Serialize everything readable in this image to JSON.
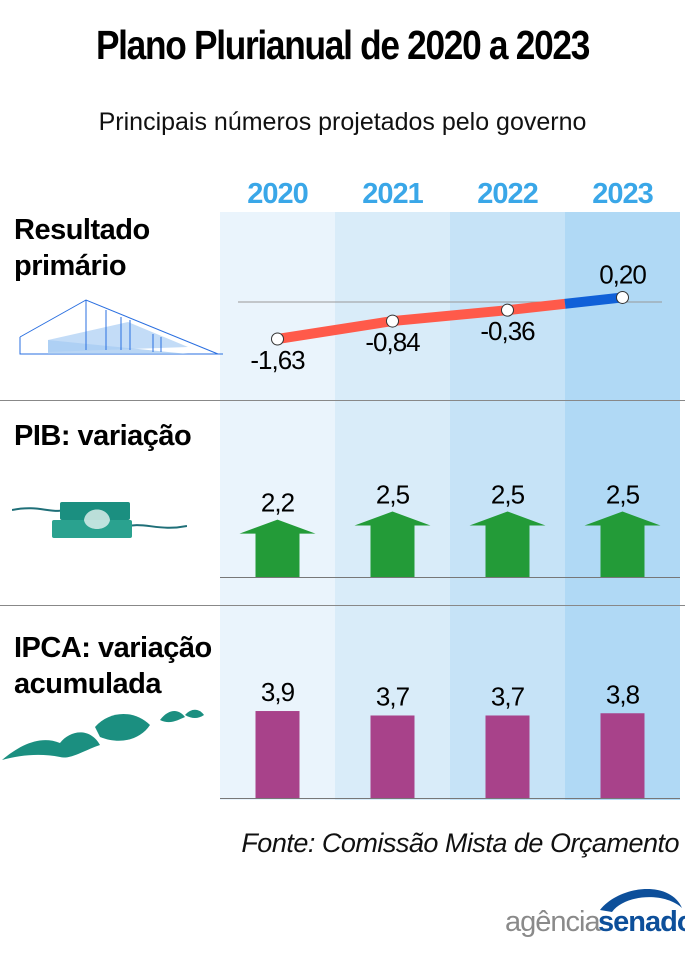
{
  "title": "Plano Plurianual de 2020 a 2023",
  "subtitle": "Principais números projetados pelo governo",
  "source": "Fonte: Comissão Mista de Orçamento",
  "logo": {
    "part1": "agência",
    "part2": "senado"
  },
  "colors": {
    "years": "#3aa7e8",
    "line_negative": "#ff5a4a",
    "line_positive": "#1060d8",
    "arrow": "#239b38",
    "bar": "#a8428a",
    "columns": [
      "#eaf4fc",
      "#d9ecf9",
      "#c6e3f7",
      "#b0d9f5"
    ]
  },
  "chart_data": [
    {
      "type": "line",
      "title": "Resultado primário",
      "categories": [
        "2020",
        "2021",
        "2022",
        "2023"
      ],
      "values": [
        -1.63,
        -0.84,
        -0.36,
        0.2
      ],
      "labels": [
        "-1,63",
        "-0,84",
        "-0,36",
        "0,20"
      ]
    },
    {
      "type": "bar",
      "title": "PIB: variação",
      "categories": [
        "2020",
        "2021",
        "2022",
        "2023"
      ],
      "values": [
        2.2,
        2.5,
        2.5,
        2.5
      ],
      "labels": [
        "2,2",
        "2,5",
        "2,5",
        "2,5"
      ],
      "mark": "arrow"
    },
    {
      "type": "bar",
      "title": "IPCA: variação acumulada",
      "categories": [
        "2020",
        "2021",
        "2022",
        "2023"
      ],
      "values": [
        3.9,
        3.7,
        3.7,
        3.8
      ],
      "labels": [
        "3,9",
        "3,7",
        "3,7",
        "3,8"
      ]
    }
  ],
  "rows": [
    {
      "label_lines": [
        "Resultado",
        "primário"
      ]
    },
    {
      "label_lines": [
        "PIB: variação"
      ]
    },
    {
      "label_lines": [
        "IPCA: variação",
        "acumulada"
      ]
    }
  ]
}
